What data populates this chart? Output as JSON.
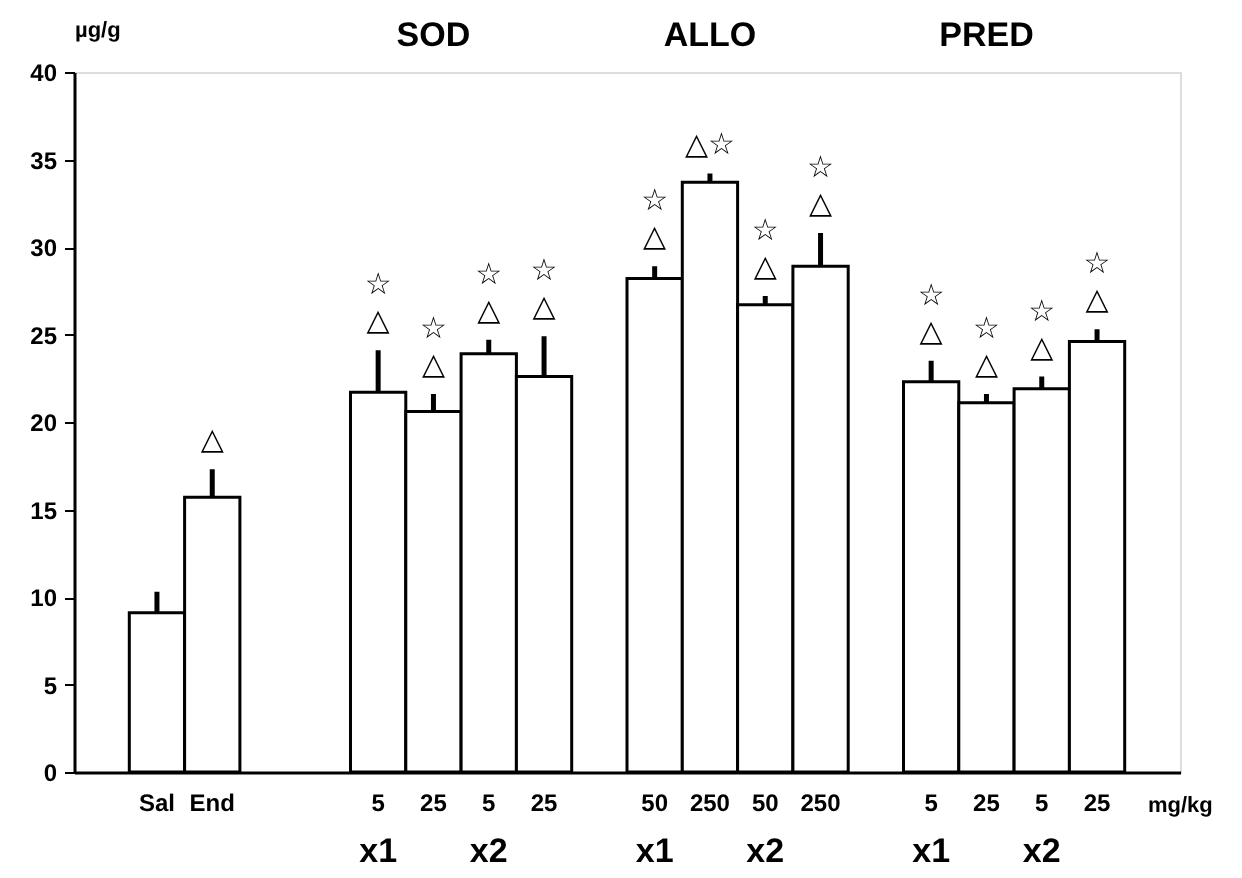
{
  "chart_data": {
    "type": "bar",
    "ylabel": "µg/g",
    "xlabel": "mg/kg",
    "categories": [
      null,
      "Sal",
      "End",
      null,
      null,
      "5",
      "25",
      "5",
      "25",
      null,
      "50",
      "250",
      "50",
      "250",
      null,
      "5",
      "25",
      "5",
      "25",
      null
    ],
    "values": [
      null,
      9.1,
      15.7,
      null,
      null,
      21.7,
      20.6,
      23.9,
      22.6,
      null,
      28.2,
      33.7,
      26.7,
      28.9,
      null,
      22.3,
      21.1,
      21.9,
      24.6,
      null
    ],
    "errors": [
      null,
      [
        9.1,
        10.3
      ],
      [
        15.7,
        17.3
      ],
      null,
      null,
      [
        21.7,
        24.1
      ],
      [
        20.6,
        21.6
      ],
      [
        23.9,
        24.7
      ],
      [
        22.6,
        24.9
      ],
      null,
      [
        28.2,
        28.9
      ],
      [
        33.7,
        34.2
      ],
      [
        26.7,
        27.2
      ],
      [
        28.9,
        30.8
      ],
      null,
      [
        22.3,
        23.5
      ],
      [
        21.1,
        21.6
      ],
      [
        21.9,
        22.6
      ],
      [
        24.6,
        25.3
      ],
      null
    ],
    "value_labels": [
      null,
      null,
      "△",
      null,
      null,
      "☆\n△",
      "☆\n△",
      "☆\n△",
      "☆\n△",
      null,
      "☆\n△",
      "△☆",
      "☆\n△",
      "☆\n△",
      null,
      "☆\n△",
      "☆\n△",
      "☆\n△",
      "☆\n△",
      null
    ],
    "color": "#ffffff",
    "ylim": [
      0,
      40
    ],
    "yticks": [
      0,
      5,
      10,
      15,
      20,
      25,
      30,
      35,
      40
    ],
    "grid": false,
    "annotations": [
      "SOD",
      "ALLO",
      "PRED",
      "x1",
      "x2",
      "x1",
      "x2",
      "x1",
      "x2"
    ]
  }
}
